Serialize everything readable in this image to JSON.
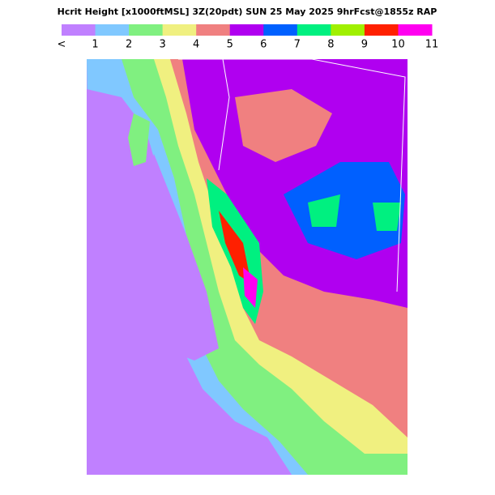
{
  "header": {
    "title": "Hcrit Height [x1000ftMSL] 3Z(20pdt) SUN 25 May 2025 9hrFcst@1855z RAP"
  },
  "legend": {
    "colors": [
      "#c080ff",
      "#80c8ff",
      "#80f080",
      "#f0f080",
      "#f08080",
      "#b000f0",
      "#0060ff",
      "#00f080",
      "#a0f000",
      "#ff2000",
      "#ff00f0"
    ],
    "labels": [
      "<",
      "1",
      "2",
      "3",
      "4",
      "5",
      "6",
      "7",
      "8",
      "9",
      "10",
      "11"
    ]
  }
}
